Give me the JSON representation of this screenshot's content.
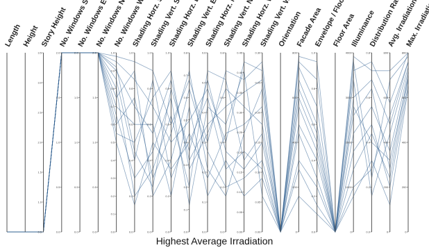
{
  "chart_data": {
    "type": "parallel-coordinates",
    "title": "",
    "xlabel": "Highest Average Irradiation",
    "line_color": "#2f5f8f",
    "axes": [
      {
        "name": "Length",
        "ticks": []
      },
      {
        "name": "Height",
        "ticks": []
      },
      {
        "name": "Story Height",
        "ticks": [
          "3.5",
          "3.0",
          "2.5",
          "2.0",
          "1.5",
          "1.0",
          "0.5"
        ]
      },
      {
        "name": "No. Windows S",
        "ticks": [
          "2.0",
          "1.5",
          "1.0",
          "0.5",
          "0.0"
        ]
      },
      {
        "name": "No. Windows E",
        "ticks": [
          "2.0",
          "1.5",
          "1.0",
          "0.5",
          "0.0"
        ]
      },
      {
        "name": "No. Windows N",
        "ticks": [
          "2.0",
          "1.5",
          "1.0",
          "0.5",
          "0.0"
        ]
      },
      {
        "name": "No. Windows W",
        "ticks": [
          "1.0",
          "0.9",
          "0.8",
          "0.7",
          "0.6",
          "0.5",
          "0.4",
          "0.3",
          "0.2",
          "0.1",
          "0.0"
        ]
      },
      {
        "name": "Shading Horz. S",
        "ticks": [
          "1.0",
          "0.8",
          "0.6",
          "0.4",
          "0.2",
          "0.0"
        ]
      },
      {
        "name": "Shading Vert. S",
        "ticks": [
          "1.0",
          "0.8",
          "0.6",
          "0.4",
          "0.2",
          "0.0"
        ]
      },
      {
        "name": "Shading Horz. E",
        "ticks": [
          "1.0",
          "0.8",
          "0.6",
          "0.4",
          "0.2",
          "0.0"
        ]
      },
      {
        "name": "Shading Vert. E",
        "ticks": [
          "0.8",
          "0.7",
          "0.6",
          "0.5",
          "0.4",
          "0.3",
          "0.2",
          "0.1",
          "0.0"
        ]
      },
      {
        "name": "Shading Horz. N",
        "ticks": [
          "0.6",
          "0.5",
          "0.4",
          "0.3",
          "0.2",
          "0.1",
          "0.0"
        ]
      },
      {
        "name": "Shading Vert. N",
        "ticks": [
          "0.8",
          "0.6",
          "0.4",
          "0.2",
          "0.0"
        ]
      },
      {
        "name": "Shading Horz. W",
        "ticks": [
          "0.45",
          "0.40",
          "0.35",
          "0.30",
          "0.25",
          "0.20",
          "0.15",
          "0.10",
          "0.05",
          "0.00"
        ]
      },
      {
        "name": "Shading Vert. W",
        "ticks": [
          "0.30",
          "0.25",
          "0.20",
          "0.15",
          "0.10",
          "0.05",
          "0.00"
        ]
      },
      {
        "name": "Orientation",
        "ticks": []
      },
      {
        "name": "Facade Area",
        "ticks": [
          "800",
          "600",
          "400",
          "200",
          "0"
        ]
      },
      {
        "name": "Envelope / Floor",
        "ticks": [
          "1.0",
          "0.8",
          "0.6",
          "0.4",
          "0.2",
          "0.0"
        ]
      },
      {
        "name": "Floor Area",
        "ticks": []
      },
      {
        "name": "Illuminance",
        "ticks": [
          "4000",
          "3000",
          "2000",
          "1000",
          "0"
        ]
      },
      {
        "name": "Distribution Ratio",
        "ticks": [
          "0.8",
          "0.6",
          "0.4",
          "0.2",
          "0.0"
        ]
      },
      {
        "name": "Avg. Irradiation",
        "ticks": [
          "800",
          "600",
          "400",
          "200",
          "0"
        ]
      },
      {
        "name": "Max. Irradiation",
        "ticks": [
          "800",
          "600",
          "400",
          "200",
          "0"
        ]
      }
    ],
    "polylines": [
      [
        0,
        0,
        0,
        1.0,
        1.0,
        1.0,
        0.95,
        0.85,
        0.7,
        0.5,
        0.62,
        0.8,
        0.5,
        0.95,
        0.9,
        0.0,
        0.92,
        0.7,
        0.0,
        0.9,
        0.95,
        0.72,
        1.0
      ],
      [
        0,
        0,
        0,
        1.0,
        1.0,
        1.0,
        0.9,
        0.7,
        0.55,
        0.85,
        0.4,
        0.6,
        0.7,
        0.78,
        0.85,
        0.0,
        0.8,
        0.55,
        0.0,
        0.75,
        0.85,
        0.6,
        0.95
      ],
      [
        0,
        0,
        0,
        1.0,
        1.0,
        1.0,
        0.85,
        0.4,
        0.85,
        0.3,
        0.55,
        0.3,
        0.55,
        0.6,
        0.7,
        0.0,
        0.6,
        0.4,
        0.0,
        0.55,
        0.7,
        0.45,
        0.9
      ],
      [
        0,
        0,
        0,
        1.0,
        1.0,
        1.0,
        0.8,
        0.2,
        0.35,
        0.65,
        0.25,
        0.9,
        0.85,
        0.4,
        0.55,
        0.0,
        0.4,
        0.25,
        0.0,
        0.35,
        0.55,
        0.3,
        0.85
      ],
      [
        0,
        0,
        0,
        1.0,
        1.0,
        1.0,
        0.75,
        0.9,
        0.2,
        0.4,
        0.8,
        0.45,
        0.25,
        0.3,
        0.4,
        0.0,
        0.2,
        0.1,
        0.0,
        0.2,
        0.4,
        0.15,
        0.8
      ],
      [
        0,
        0,
        0,
        1.0,
        1.0,
        1.0,
        0.7,
        0.6,
        0.6,
        0.2,
        0.7,
        0.2,
        0.4,
        0.2,
        0.3,
        0.0,
        0.95,
        0.85,
        0.0,
        0.95,
        0.3,
        0.85,
        0.98
      ],
      [
        0,
        0,
        0,
        1.0,
        1.0,
        1.0,
        0.65,
        0.3,
        0.45,
        0.75,
        0.15,
        0.7,
        0.6,
        0.9,
        0.2,
        0.0,
        0.85,
        0.6,
        0.0,
        0.85,
        0.2,
        0.55,
        0.92
      ],
      [
        0,
        0,
        0,
        1.0,
        1.0,
        1.0,
        0.6,
        0.75,
        0.3,
        0.55,
        0.9,
        0.35,
        0.2,
        0.55,
        0.8,
        0.0,
        0.7,
        0.45,
        0.0,
        0.65,
        0.8,
        0.35,
        0.88
      ],
      [
        0,
        0,
        0,
        1.0,
        1.0,
        1.0,
        0.55,
        0.5,
        0.75,
        0.9,
        0.35,
        0.55,
        0.8,
        0.7,
        0.6,
        0.0,
        0.55,
        0.3,
        0.0,
        0.45,
        0.6,
        0.25,
        0.82
      ],
      [
        0,
        0,
        0,
        1.0,
        1.0,
        1.0,
        0.5,
        0.15,
        0.5,
        0.35,
        0.5,
        0.75,
        0.35,
        0.45,
        0.35,
        0.0,
        0.35,
        0.15,
        0.0,
        0.25,
        0.35,
        0.65,
        0.95
      ],
      [
        0,
        0,
        0,
        1.0,
        1.0,
        1.0,
        0.98,
        0.95,
        0.9,
        0.6,
        0.85,
        0.5,
        0.9,
        0.85,
        0.95,
        0.0,
        0.98,
        0.95,
        0.0,
        0.98,
        0.9,
        0.9,
        1.0
      ],
      [
        0,
        0,
        0,
        1.0,
        1.0,
        1.0,
        0.92,
        0.45,
        0.25,
        0.8,
        0.45,
        0.85,
        0.45,
        0.35,
        0.5,
        0.0,
        0.75,
        0.5,
        0.0,
        0.7,
        0.5,
        0.4,
        0.86
      ]
    ]
  }
}
